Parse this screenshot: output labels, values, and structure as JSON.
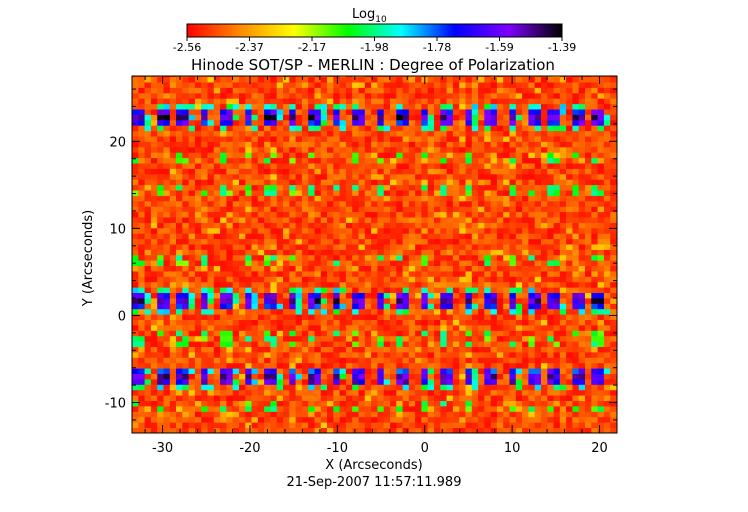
{
  "chart_data": {
    "type": "heatmap",
    "title": "Hinode SOT/SP - MERLIN : Degree of Polarization",
    "xlabel": "X (Arcseconds)",
    "ylabel": "Y (Arcseconds)",
    "date_label": "21-Sep-2007 11:57:11.989",
    "xlim": [
      -33.5,
      22.0
    ],
    "ylim": [
      -13.5,
      27.5
    ],
    "x_ticks": [
      -30,
      -20,
      -10,
      0,
      10,
      20
    ],
    "y_ticks": [
      -10,
      0,
      10,
      20
    ],
    "colorbar": {
      "label": "Log",
      "label_subscript": "10",
      "range": [
        -2.56,
        -1.39
      ],
      "ticks": [
        "-2.56",
        "-2.37",
        "-2.17",
        "-1.98",
        "-1.78",
        "-1.59",
        "-1.39"
      ],
      "colors": [
        "#ff0000",
        "#ff8c00",
        "#ffff00",
        "#00ff00",
        "#00ffff",
        "#0000ff",
        "#7f00ff",
        "#000000"
      ]
    },
    "bright_rows_y": [
      22.5,
      1.5,
      -7.5
    ],
    "faint_rows_y": [
      18,
      14,
      6,
      -3,
      -10.5
    ],
    "spot_x_spacing": 2.5,
    "background_value": -2.5
  }
}
